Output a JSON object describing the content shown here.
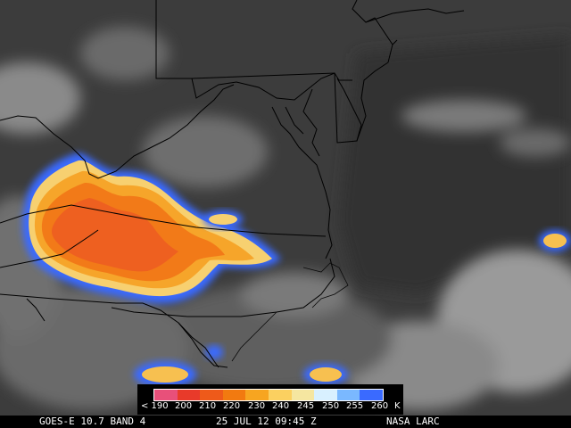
{
  "footer": {
    "satellite": "GOES-E 10.7 BAND 4",
    "datetime": "25 JUL 12 09:45 Z",
    "credit": "NASA LARC"
  },
  "legend": {
    "unit": "K",
    "labels": [
      "< 190",
      "200",
      "210",
      "220",
      "230",
      "240",
      "245",
      "250",
      "255",
      "260"
    ],
    "colors": [
      "#e8507a",
      "#e83a2a",
      "#ee5a1a",
      "#f27a10",
      "#f7a520",
      "#fbd060",
      "#f5e6a0",
      "#d8f0ff",
      "#7ab8ff",
      "#3a6aff"
    ]
  }
}
